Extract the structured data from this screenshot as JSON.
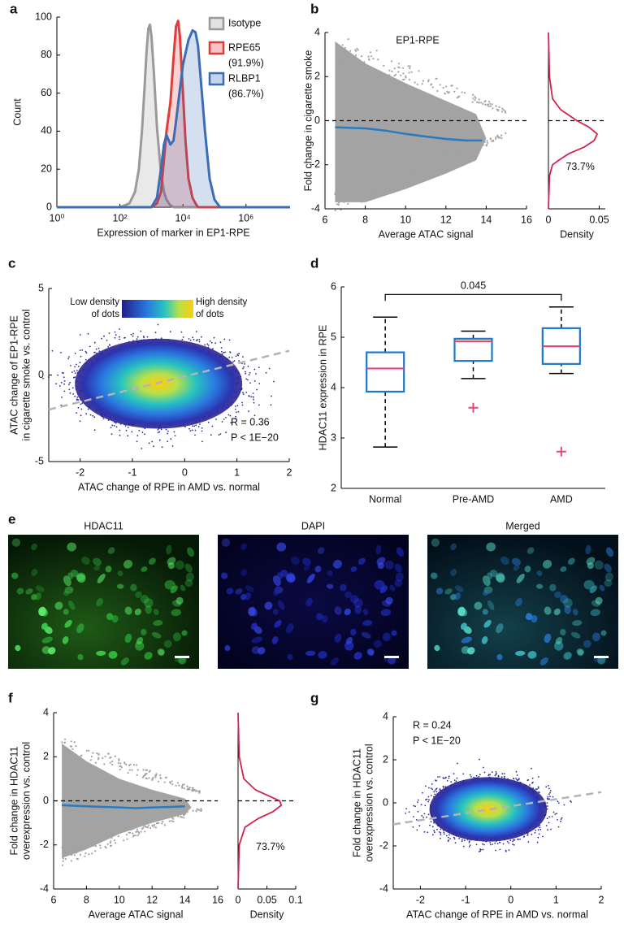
{
  "chart_data": [
    {
      "panel": "a",
      "type": "area",
      "xscale": "log",
      "xlabel": "Expression of marker in EP1-RPE",
      "ylabel": "Count",
      "xlim": [
        1,
        25000000
      ],
      "xticks": [
        {
          "value": 1,
          "label": "10⁰"
        },
        {
          "value": 100,
          "label": "10²"
        },
        {
          "value": 10000,
          "label": "10⁴"
        },
        {
          "value": 1000000,
          "label": "10⁶"
        }
      ],
      "ylim": [
        0,
        100
      ],
      "yticks": [
        0,
        20,
        40,
        60,
        80,
        100
      ],
      "series": [
        {
          "name": "Isotype",
          "color": "#9a9a9a",
          "x": [
            1,
            100,
            200,
            300,
            400,
            500,
            600,
            700,
            800,
            900,
            1000,
            1200,
            1500,
            2000,
            2500,
            3000,
            4000,
            5000,
            25000000
          ],
          "values": [
            0,
            0,
            2,
            8,
            20,
            40,
            62,
            82,
            94,
            96,
            90,
            70,
            42,
            18,
            8,
            4,
            1,
            0,
            0
          ]
        },
        {
          "name": "RPE65",
          "percent": "(91.9%)",
          "color": "#e03c3c",
          "x": [
            1,
            1000,
            1500,
            2000,
            2500,
            3000,
            4000,
            5000,
            6000,
            7000,
            8000,
            10000,
            12000,
            15000,
            20000,
            25000,
            30000,
            25000000
          ],
          "values": [
            0,
            0,
            2,
            8,
            25,
            40,
            55,
            78,
            95,
            98,
            90,
            60,
            35,
            15,
            5,
            2,
            0,
            0
          ]
        },
        {
          "name": "RLBP1",
          "percent": "(86.7%)",
          "color": "#3b6db5",
          "x": [
            1,
            1000,
            1500,
            2000,
            2500,
            3000,
            4000,
            5000,
            6000,
            8000,
            10000,
            15000,
            20000,
            25000,
            30000,
            40000,
            50000,
            70000,
            100000,
            150000,
            25000000
          ],
          "values": [
            0,
            0,
            5,
            20,
            33,
            38,
            33,
            35,
            45,
            62,
            75,
            88,
            93,
            92,
            85,
            60,
            40,
            15,
            4,
            0,
            0
          ]
        }
      ]
    },
    {
      "panel": "b",
      "type": "line",
      "title": "EP1-RPE",
      "xlabel": "Average ATAC signal",
      "ylabel": "Fold change in cigarette smoke",
      "xlim": [
        6,
        16
      ],
      "xticks": [
        6,
        8,
        10,
        12,
        14,
        16
      ],
      "ylim": [
        -4,
        4
      ],
      "yticks": [
        -4,
        -2,
        0,
        2,
        4
      ],
      "hline": 0,
      "color": "#2a7abf",
      "x": [
        6.5,
        8,
        9,
        10,
        11,
        12,
        13,
        13.8
      ],
      "values": [
        -0.3,
        -0.35,
        -0.45,
        -0.6,
        -0.72,
        -0.83,
        -0.9,
        -0.9
      ]
    },
    {
      "type": "line",
      "orientation": "vertical",
      "xlabel": "Density",
      "xlim": [
        0,
        0.056
      ],
      "xticks": [
        0,
        0.05
      ],
      "ylim": [
        -4,
        4
      ],
      "hline": 0,
      "color": "#d6204e",
      "annotation": "73.7%",
      "y": [
        4,
        2,
        1,
        0.5,
        0,
        -0.3,
        -0.6,
        -0.9,
        -1.2,
        -1.5,
        -1.8,
        -2,
        -2.5,
        -4
      ],
      "values": [
        0,
        0.001,
        0.004,
        0.012,
        0.028,
        0.04,
        0.048,
        0.045,
        0.035,
        0.02,
        0.01,
        0.004,
        0.001,
        0
      ]
    },
    {
      "panel": "c",
      "type": "scatter",
      "xlabel": "ATAC change of RPE in AMD vs. normal",
      "ylabel": [
        "ATAC change of EP1-RPE",
        "in cigarette smoke vs. control"
      ],
      "xlim": [
        -2.6,
        2
      ],
      "xticks": [
        -2,
        -1,
        0,
        1,
        2
      ],
      "ylim": [
        -5,
        5
      ],
      "yticks": [
        -5,
        0,
        5
      ],
      "colorbar_labels": [
        [
          "Low density",
          "of dots"
        ],
        [
          "High density",
          "of dots"
        ]
      ],
      "fit": {
        "x": [
          -2.6,
          2
        ],
        "values": [
          -2.0,
          1.4
        ]
      },
      "stats": [
        "R = 0.36",
        "P < 1E−20"
      ]
    },
    {
      "panel": "d",
      "type": "box",
      "ylabel": "HDAC11 expression in RPE",
      "categories": [
        "Normal",
        "Pre-AMD",
        "AMD"
      ],
      "ylim": [
        2,
        6
      ],
      "yticks": [
        2,
        3,
        4,
        5,
        6
      ],
      "color": "#1f78c8",
      "median_color": "#e04a7a",
      "low": [
        2.82,
        4.18,
        4.28
      ],
      "q1": [
        3.92,
        4.53,
        4.47
      ],
      "median": [
        4.38,
        4.92,
        4.82
      ],
      "q3": [
        4.7,
        4.97,
        5.18
      ],
      "high": [
        5.4,
        5.12,
        5.6
      ],
      "outliers": [
        null,
        3.6,
        2.73
      ],
      "bracket": {
        "from": 0,
        "to": 2,
        "y": 5.85,
        "label": "0.045"
      }
    },
    {
      "panel": "f",
      "type": "line",
      "xlabel": "Average ATAC signal",
      "ylabel": [
        "Fold change in HDAC11",
        "overexpression vs. control"
      ],
      "xlim": [
        6,
        16
      ],
      "xticks": [
        6,
        8,
        10,
        12,
        14,
        16
      ],
      "ylim": [
        -4,
        4
      ],
      "yticks": [
        -4,
        -2,
        0,
        2,
        4
      ],
      "hline": 0,
      "color": "#2a7abf",
      "x": [
        6.5,
        8,
        10,
        11,
        12,
        13,
        14
      ],
      "values": [
        -0.2,
        -0.25,
        -0.3,
        -0.33,
        -0.3,
        -0.28,
        -0.25
      ]
    },
    {
      "type": "line",
      "orientation": "vertical",
      "xlabel": "Density",
      "xlim": [
        0,
        0.1
      ],
      "xticks": [
        0,
        0.05,
        0.1
      ],
      "ylim": [
        -4,
        4
      ],
      "hline": 0,
      "color": "#d6204e",
      "annotation": "73.7%",
      "y": [
        4,
        2,
        1,
        0.5,
        0.2,
        0,
        -0.2,
        -0.5,
        -0.8,
        -1.2,
        -2,
        -4
      ],
      "values": [
        0,
        0.002,
        0.01,
        0.03,
        0.055,
        0.072,
        0.075,
        0.06,
        0.035,
        0.012,
        0.002,
        0
      ]
    },
    {
      "panel": "g",
      "type": "scatter",
      "xlabel": "ATAC change of RPE in AMD vs. normal",
      "ylabel": [
        "Fold change in HDAC11",
        "overexpression vs. control"
      ],
      "xlim": [
        -2.6,
        2
      ],
      "xticks": [
        -2,
        -1,
        0,
        1,
        2
      ],
      "ylim": [
        -4,
        4
      ],
      "yticks": [
        -4,
        -2,
        0,
        2,
        4
      ],
      "fit": {
        "x": [
          -2.6,
          2
        ],
        "values": [
          -1.0,
          0.5
        ]
      },
      "stats": [
        "R = 0.24",
        "P < 1E−20"
      ]
    }
  ],
  "image_panel": {
    "panel": "e",
    "images": [
      {
        "label": "HDAC11"
      },
      {
        "label": "DAPI"
      },
      {
        "label": "Merged"
      }
    ]
  }
}
